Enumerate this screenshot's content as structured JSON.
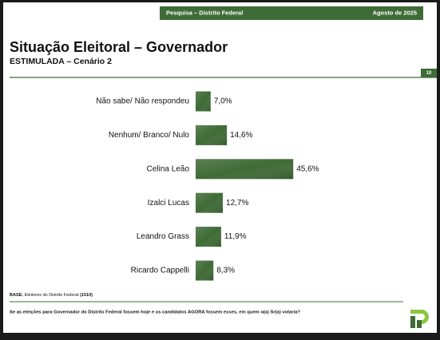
{
  "header": {
    "left": "Pesquisa – Distrito Federal",
    "right": "Agosto de 2025"
  },
  "page_number": "10",
  "chart_data": {
    "type": "bar",
    "orientation": "horizontal",
    "title": "Situação Eleitoral – Governador",
    "subtitle": "ESTIMULADA – Cenário 2",
    "categories": [
      "Não sabe/ Não respondeu",
      "Nenhum/ Branco/ Nulo",
      "Celina Leão",
      "Izalci Lucas",
      "Leandro Grass",
      "Ricardo Cappelli"
    ],
    "values": [
      7.0,
      14.6,
      45.6,
      12.7,
      11.9,
      8.3
    ],
    "value_labels": [
      "7,0%",
      "14,6%",
      "45,6%",
      "12,7%",
      "11,9%",
      "8,3%"
    ],
    "color": "#3f6b36"
  },
  "footer": {
    "base_label": "BASE:",
    "base_text": "Eleitores do Distrito Federal",
    "base_n": "(1510)",
    "question": "Se as eleições para Governador do Distrito Federal fossem hoje e os candidatos AGORA fossem esses, em quem o(a) Sr(a) votaria?"
  }
}
